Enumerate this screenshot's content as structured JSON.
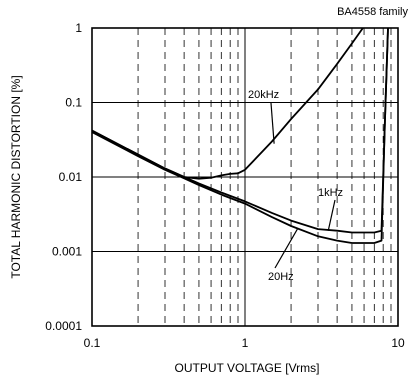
{
  "chart_data": {
    "type": "line",
    "title": "BA4558  family",
    "xlabel": "OUTPUT VOLTAGE [Vrms]",
    "ylabel": "TOTAL HARMONIC DISTORTION [%]",
    "x_scale": "log",
    "y_scale": "log",
    "xlim": [
      0.1,
      10
    ],
    "ylim": [
      0.0001,
      1
    ],
    "grid": true,
    "x_ticks": [
      "0.1",
      "1",
      "10"
    ],
    "y_ticks": [
      "0.0001",
      "0.001",
      "0.01",
      "0.1",
      "1"
    ],
    "series": [
      {
        "name": "20kHz",
        "x": [
          0.1,
          0.2,
          0.3,
          0.4,
          0.5,
          0.6,
          0.7,
          0.8,
          0.9,
          1.0,
          1.5,
          2.0,
          3.0,
          4.0,
          5.0,
          5.9
        ],
        "y": [
          0.042,
          0.02,
          0.013,
          0.01,
          0.0095,
          0.0098,
          0.0105,
          0.011,
          0.0112,
          0.0125,
          0.03,
          0.06,
          0.15,
          0.33,
          0.62,
          1.0
        ]
      },
      {
        "name": "1kHz",
        "x": [
          0.1,
          0.2,
          0.3,
          0.4,
          0.5,
          0.7,
          1.0,
          1.5,
          2.0,
          3.0,
          4.0,
          5.0,
          6.0,
          7.0,
          7.8,
          8.2,
          8.6
        ],
        "y": [
          0.042,
          0.02,
          0.013,
          0.01,
          0.0082,
          0.0062,
          0.0047,
          0.0033,
          0.0026,
          0.002,
          0.0019,
          0.0018,
          0.0018,
          0.0018,
          0.0019,
          0.05,
          1.0
        ]
      },
      {
        "name": "20Hz",
        "x": [
          0.1,
          0.2,
          0.3,
          0.4,
          0.5,
          0.7,
          1.0,
          1.5,
          2.0,
          3.0,
          4.0,
          5.0,
          6.0,
          7.0,
          7.8,
          8.2,
          8.6
        ],
        "y": [
          0.04,
          0.019,
          0.0125,
          0.0096,
          0.0078,
          0.0058,
          0.0044,
          0.0029,
          0.0022,
          0.0016,
          0.0014,
          0.0013,
          0.0013,
          0.0013,
          0.0014,
          0.05,
          1.0
        ]
      }
    ]
  }
}
